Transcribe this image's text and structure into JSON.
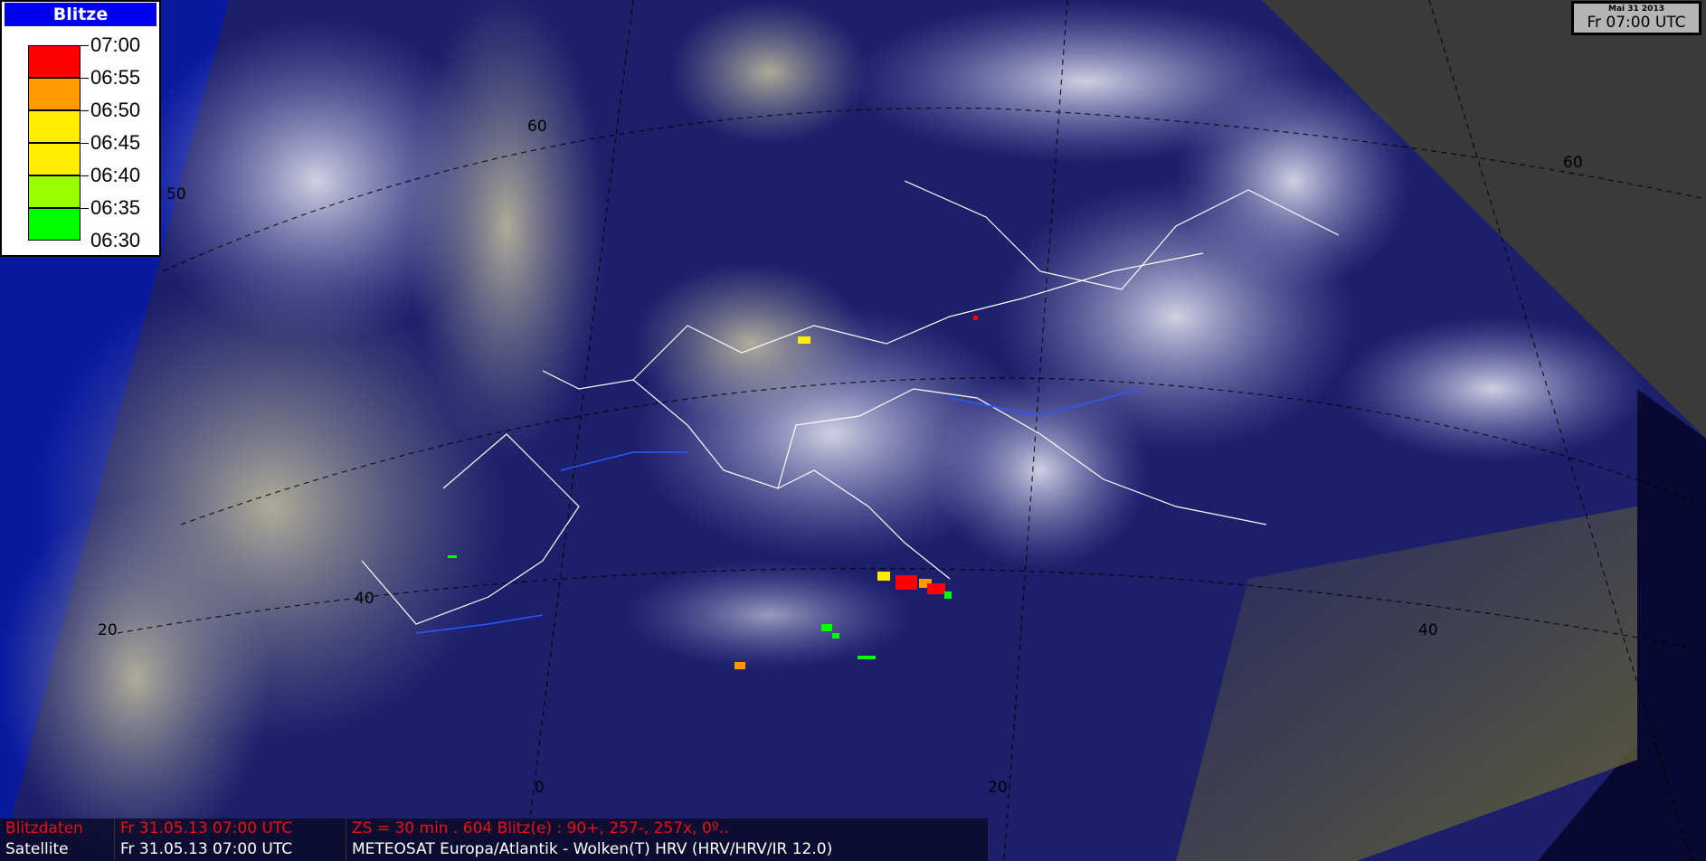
{
  "legend": {
    "title": "Blitze",
    "items": [
      {
        "time": "07:00"
      },
      {
        "time": "06:55"
      },
      {
        "time": "06:50"
      },
      {
        "time": "06:45"
      },
      {
        "time": "06:40"
      },
      {
        "time": "06:35"
      },
      {
        "time": "06:30"
      }
    ],
    "colors": [
      "#ff0000",
      "#ff9900",
      "#ffee00",
      "#ffee00",
      "#99ff00",
      "#00ff00"
    ]
  },
  "clock": {
    "date": "Mai 31 2013",
    "time": "Fr 07:00 UTC"
  },
  "grid_labels": {
    "lat60_a": "60",
    "lat50": "50",
    "lat40_a": "40",
    "lon20w": "20",
    "lon0": "0",
    "lon20e": "20",
    "lat40_b": "40",
    "lat60_b": "60"
  },
  "status": {
    "lightning": {
      "label": "Blitzdaten",
      "time": "Fr 31.05.13 07:00 UTC",
      "info": "ZS = 30 min . 604 Blitz(e) : 90+, 257-, 257x, 0º.."
    },
    "satellite": {
      "label": "Satellite",
      "time": "Fr 31.05.13 07:00 UTC",
      "info": "METEOSAT Europa/Atlantik - Wolken(T) HRV (HRV/HRV/IR 12.0)"
    }
  }
}
